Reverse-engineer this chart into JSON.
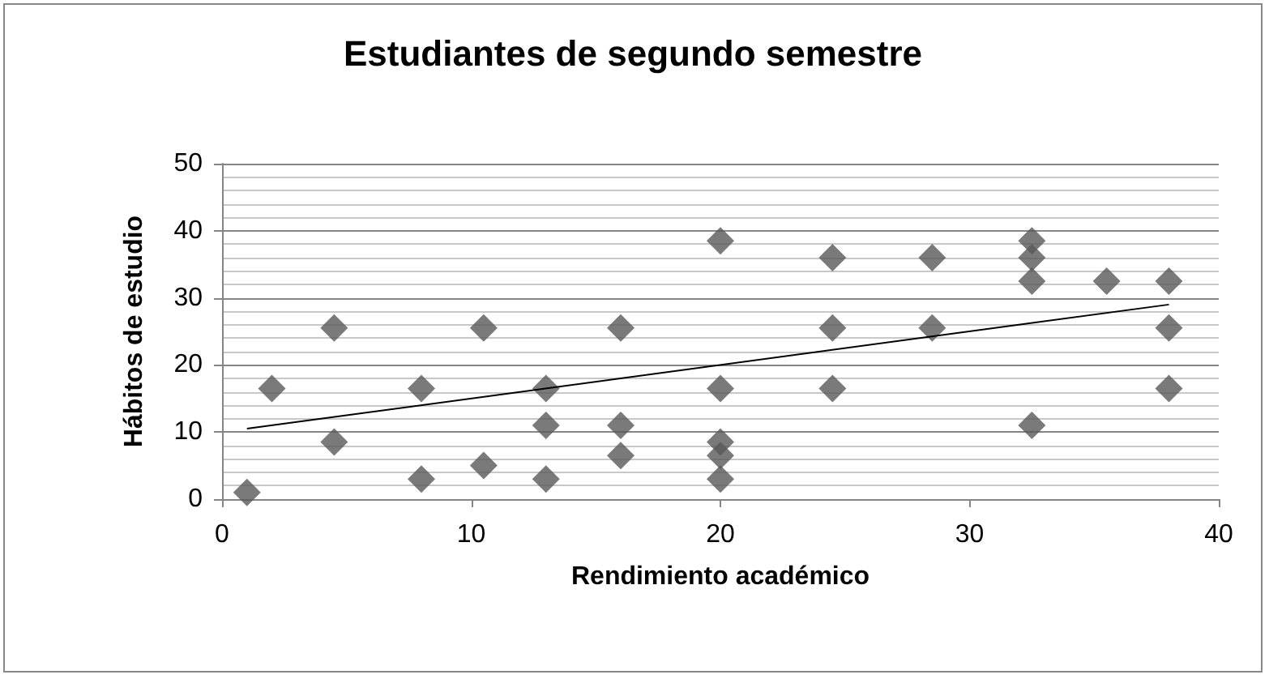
{
  "chart_data": {
    "type": "scatter",
    "title": "Estudiantes de segundo semestre",
    "xlabel": "Rendimiento académico",
    "ylabel": "Hábitos de estudio",
    "xlim": [
      0,
      40
    ],
    "xticks": [
      0,
      10,
      20,
      30,
      40
    ],
    "ylim": [
      0,
      50
    ],
    "yticks": [
      0,
      10,
      20,
      30,
      40,
      50
    ],
    "grid": "y",
    "marker": "diamond",
    "series": [
      {
        "color": "#595959",
        "x": [
          1,
          2,
          4.5,
          4.5,
          8,
          8,
          10.5,
          10.5,
          13,
          13,
          13,
          16,
          16,
          16,
          20,
          20,
          20,
          20,
          20,
          24.5,
          24.5,
          24.5,
          28.5,
          28.5,
          32.5,
          32.5,
          32.5,
          32.5,
          35.5,
          38,
          38,
          38
        ],
        "values": [
          1,
          16.5,
          25.5,
          8.5,
          16.5,
          3,
          25.5,
          5,
          16.5,
          11,
          3,
          25.5,
          11,
          6.5,
          38.5,
          16.5,
          8.5,
          6.5,
          3,
          36,
          25.5,
          16.5,
          36,
          25.5,
          38.5,
          36,
          32.5,
          11,
          32.5,
          32.5,
          25.5,
          16.5
        ]
      },
      {
        "type": "line",
        "color": "#000000",
        "marker": "none",
        "x": [
          1,
          38
        ],
        "values": [
          10.5,
          29
        ]
      }
    ]
  }
}
